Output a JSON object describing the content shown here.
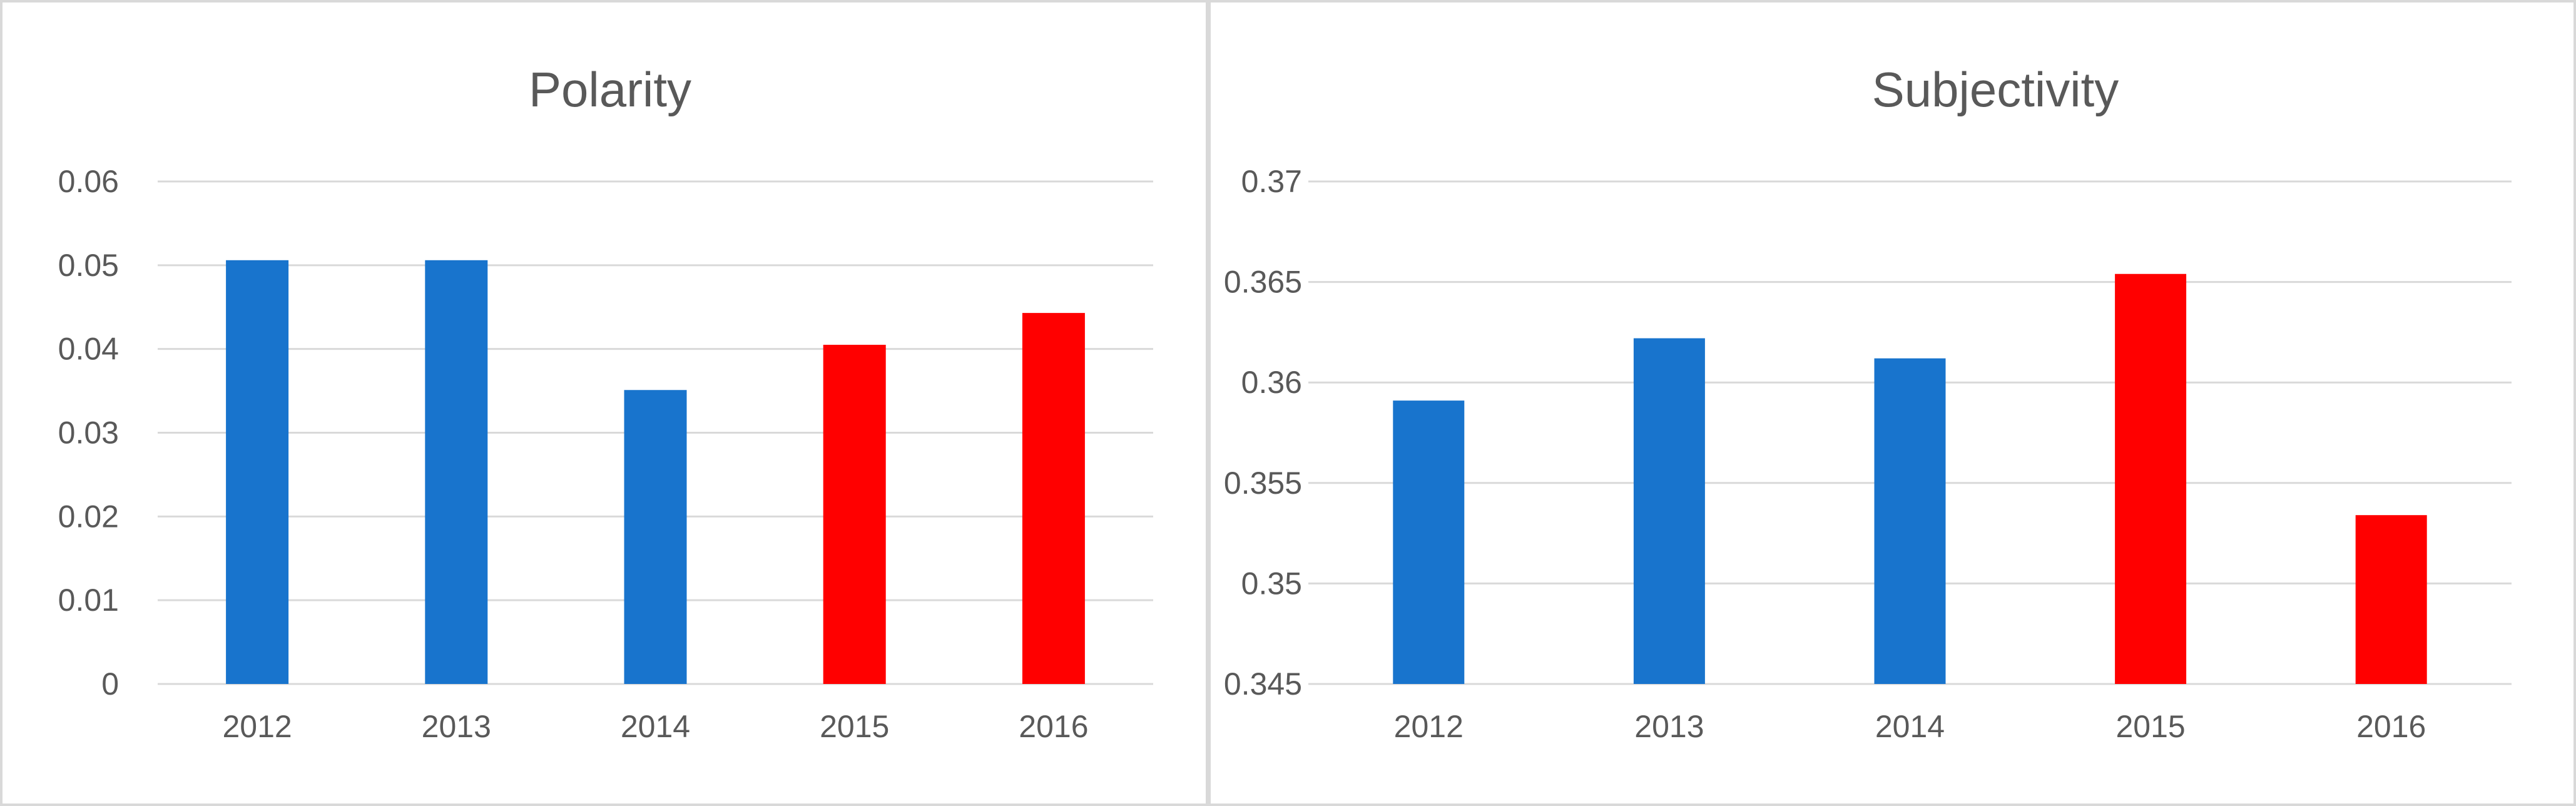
{
  "chart_data": [
    {
      "type": "bar",
      "title": "Polarity",
      "xlabel": "",
      "ylabel": "",
      "categories": [
        "2012",
        "2013",
        "2014",
        "2015",
        "2016"
      ],
      "values": [
        0.0506,
        0.0506,
        0.0351,
        0.0405,
        0.0443
      ],
      "bar_colors": [
        "#1874cd",
        "#1874cd",
        "#1874cd",
        "#ff0000",
        "#ff0000"
      ],
      "ylim": [
        0,
        0.06
      ],
      "yticks": [
        0,
        0.01,
        0.02,
        0.03,
        0.04,
        0.05,
        0.06
      ],
      "ytick_labels": [
        "0",
        "0.01",
        "0.02",
        "0.03",
        "0.04",
        "0.05",
        "0.06"
      ],
      "grid": true,
      "legend": "none"
    },
    {
      "type": "bar",
      "title": "Subjectivity",
      "xlabel": "",
      "ylabel": "",
      "categories": [
        "2012",
        "2013",
        "2014",
        "2015",
        "2016"
      ],
      "values": [
        0.3591,
        0.3622,
        0.3612,
        0.3654,
        0.3534
      ],
      "bar_colors": [
        "#1874cd",
        "#1874cd",
        "#1874cd",
        "#ff0000",
        "#ff0000"
      ],
      "ylim": [
        0.345,
        0.37
      ],
      "yticks": [
        0.345,
        0.35,
        0.355,
        0.36,
        0.365,
        0.37
      ],
      "ytick_labels": [
        "0.345",
        "0.35",
        "0.355",
        "0.36",
        "0.365",
        "0.37"
      ],
      "grid": true,
      "legend": "none"
    }
  ]
}
